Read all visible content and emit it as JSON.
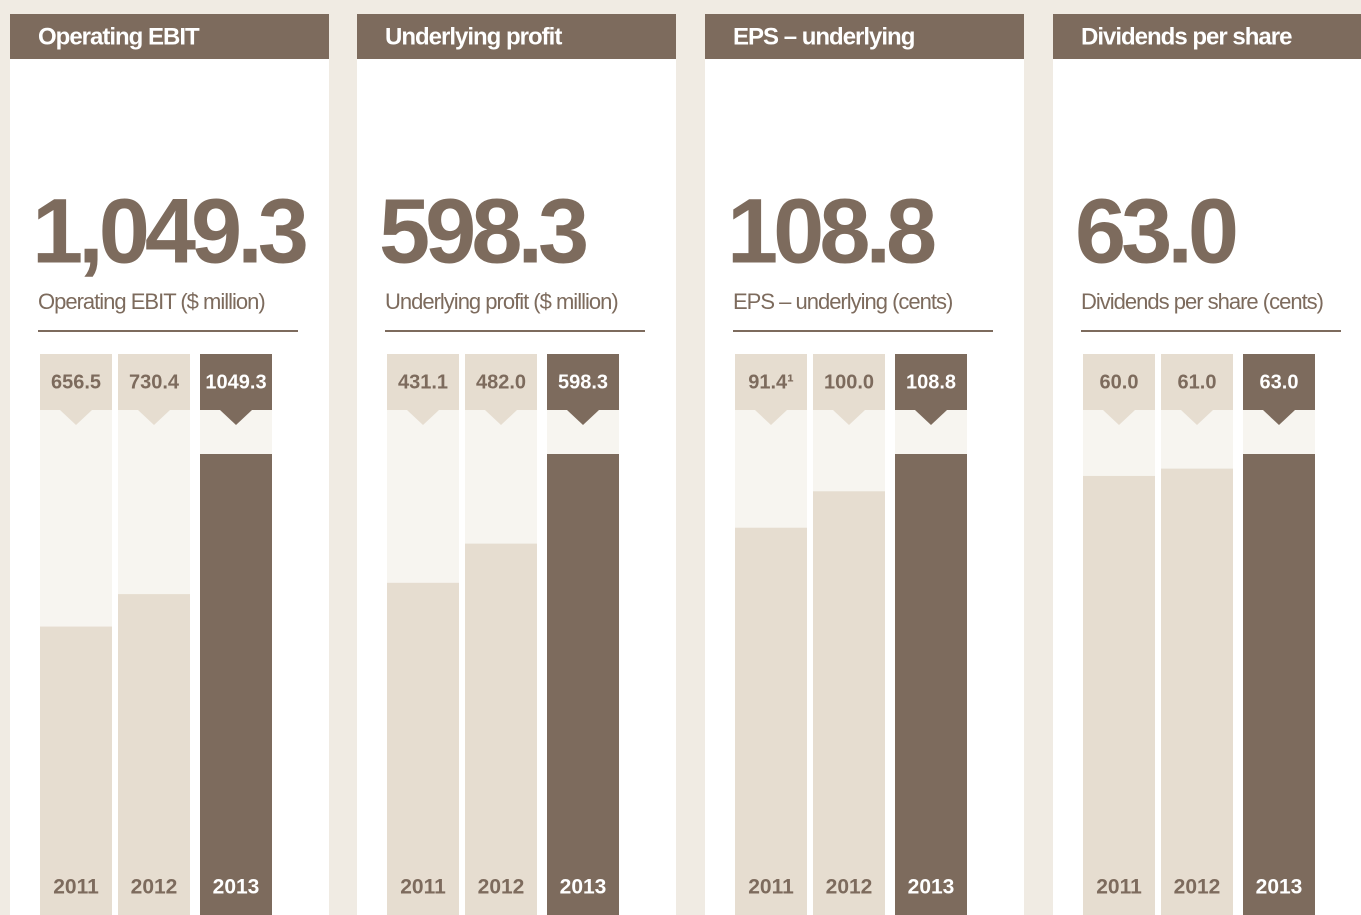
{
  "chart_data": [
    {
      "type": "bar",
      "title": "Operating EBIT",
      "headline": "1,049.3",
      "subtitle": "Operating EBIT ($ million)",
      "categories": [
        "2011",
        "2012",
        "2013"
      ],
      "values": [
        656.5,
        730.4,
        1049.3
      ],
      "value_labels": [
        "656.5",
        "730.4",
        "1049.3"
      ],
      "colors": [
        "#e6ddd0",
        "#e6ddd0",
        "#7d6b5d"
      ]
    },
    {
      "type": "bar",
      "title": "Underlying profit",
      "headline": "598.3",
      "subtitle": "Underlying profit ($ million)",
      "categories": [
        "2011",
        "2012",
        "2013"
      ],
      "values": [
        431.1,
        482.0,
        598.3
      ],
      "value_labels": [
        "431.1",
        "482.0",
        "598.3"
      ],
      "colors": [
        "#e6ddd0",
        "#e6ddd0",
        "#7d6b5d"
      ]
    },
    {
      "type": "bar",
      "title": "EPS – underlying",
      "headline": "108.8",
      "subtitle": "EPS – underlying (cents)",
      "categories": [
        "2011",
        "2012",
        "2013"
      ],
      "values": [
        91.4,
        100.0,
        108.8
      ],
      "value_labels": [
        "91.4¹",
        "100.0",
        "108.8"
      ],
      "colors": [
        "#e6ddd0",
        "#e6ddd0",
        "#7d6b5d"
      ]
    },
    {
      "type": "bar",
      "title": "Dividends per share",
      "headline": "63.0",
      "subtitle": "Dividends per share (cents)",
      "categories": [
        "2011",
        "2012",
        "2013"
      ],
      "values": [
        60.0,
        61.0,
        63.0
      ],
      "value_labels": [
        "60.0",
        "61.0",
        "63.0"
      ],
      "colors": [
        "#e6ddd0",
        "#e6ddd0",
        "#7d6b5d"
      ]
    }
  ]
}
